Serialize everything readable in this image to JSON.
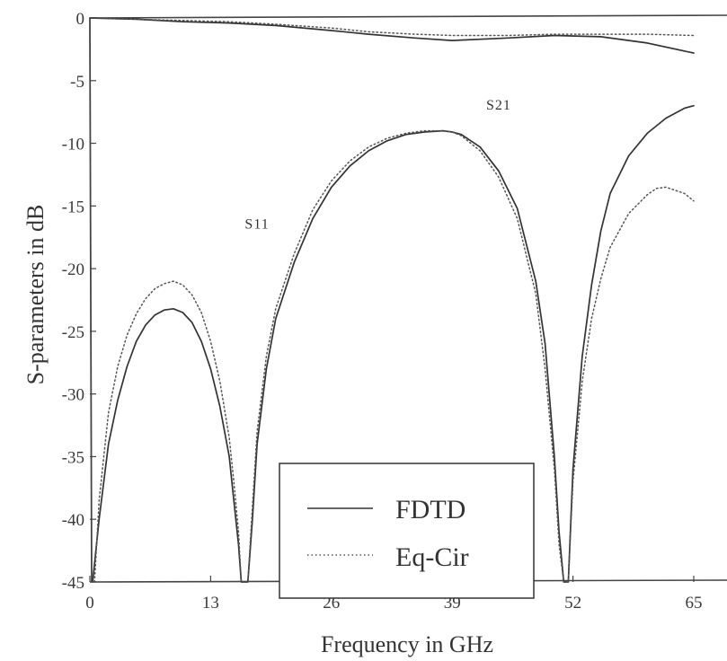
{
  "chart_data": {
    "type": "line",
    "xlabel": "Frequency in GHz",
    "ylabel": "S-parameters in dB",
    "xlim": [
      0,
      65
    ],
    "ylim": [
      -45,
      0
    ],
    "xticks": [
      0,
      13,
      26,
      39,
      52,
      65
    ],
    "yticks": [
      0,
      -5,
      -10,
      -15,
      -20,
      -25,
      -30,
      -35,
      -40,
      -45
    ],
    "grid": false,
    "legend": {
      "placement": "bottom-center",
      "entries": [
        "FDTD",
        "Eq-Cir"
      ]
    },
    "annotations": [
      {
        "text": "S21",
        "x": 44,
        "y": -7.3
      },
      {
        "text": "S11",
        "x": 18,
        "y": -16.8
      }
    ],
    "series": [
      {
        "name": "FDTD",
        "curve": "S21",
        "style": "solid",
        "x": [
          0,
          5,
          10,
          15,
          20,
          26,
          30,
          35,
          39,
          45,
          50,
          55,
          60,
          65
        ],
        "y": [
          0,
          -0.1,
          -0.3,
          -0.4,
          -0.6,
          -1.0,
          -1.3,
          -1.6,
          -1.8,
          -1.6,
          -1.4,
          -1.5,
          -2.0,
          -2.8
        ]
      },
      {
        "name": "Eq-Cir",
        "curve": "S21",
        "style": "dotted",
        "x": [
          0,
          5,
          10,
          15,
          20,
          26,
          30,
          35,
          39,
          45,
          50,
          55,
          60,
          65
        ],
        "y": [
          0,
          -0.1,
          -0.2,
          -0.3,
          -0.5,
          -0.8,
          -1.1,
          -1.3,
          -1.4,
          -1.4,
          -1.3,
          -1.3,
          -1.3,
          -1.4
        ]
      },
      {
        "name": "FDTD",
        "curve": "S11",
        "style": "solid",
        "x": [
          0.3,
          1,
          2,
          3,
          4,
          5,
          6,
          7,
          8,
          9,
          10,
          11,
          12,
          13,
          14,
          15,
          15.5,
          16,
          16.3,
          17,
          17.5,
          18,
          19,
          20,
          22,
          24,
          26,
          28,
          30,
          32,
          34,
          36,
          38,
          39,
          40,
          42,
          44,
          46,
          48,
          49,
          50,
          50.5,
          51,
          51.5,
          52,
          53,
          54,
          55,
          56,
          58,
          60,
          62,
          64,
          65
        ],
        "y": [
          -45,
          -40,
          -34,
          -30.5,
          -27.8,
          -25.8,
          -24.5,
          -23.7,
          -23.3,
          -23.2,
          -23.5,
          -24.3,
          -25.8,
          -28,
          -31,
          -35,
          -38.5,
          -42,
          -45,
          -45,
          -40,
          -34,
          -28,
          -24,
          -19.5,
          -16,
          -13.5,
          -11.8,
          -10.6,
          -9.8,
          -9.3,
          -9.1,
          -9.0,
          -9.1,
          -9.3,
          -10.3,
          -12.2,
          -15.2,
          -21,
          -26,
          -35,
          -41,
          -45,
          -45,
          -36,
          -27,
          -21.3,
          -17,
          -14,
          -11,
          -9.2,
          -8.0,
          -7.2,
          -7.0
        ]
      },
      {
        "name": "Eq-Cir",
        "curve": "S11",
        "style": "dotted",
        "x": [
          0.5,
          1,
          2,
          3,
          4,
          5,
          6,
          7,
          8,
          9,
          10,
          11,
          12,
          13,
          14,
          15,
          15.5,
          16,
          16.3,
          17,
          17.5,
          18,
          19,
          20,
          22,
          24,
          26,
          28,
          30,
          32,
          34,
          36,
          38,
          39,
          40,
          42,
          44,
          46,
          48,
          49,
          50,
          50.5,
          51,
          51.5,
          52,
          53,
          54,
          55,
          56,
          58,
          60,
          61,
          62,
          64,
          65
        ],
        "y": [
          -45,
          -38.5,
          -31.5,
          -27.8,
          -25.3,
          -23.6,
          -22.4,
          -21.6,
          -21.2,
          -21.0,
          -21.3,
          -22.1,
          -23.5,
          -25.8,
          -29,
          -33.5,
          -37,
          -41,
          -45,
          -45,
          -39,
          -33,
          -27,
          -23.2,
          -18.8,
          -15.3,
          -13,
          -11.4,
          -10.3,
          -9.6,
          -9.2,
          -9.0,
          -9.0,
          -9.1,
          -9.4,
          -10.6,
          -12.7,
          -16,
          -22,
          -28,
          -36,
          -42,
          -45,
          -45,
          -37,
          -29,
          -24,
          -20.8,
          -18.3,
          -15.6,
          -14.1,
          -13.6,
          -13.5,
          -14.0,
          -14.6
        ]
      }
    ]
  }
}
